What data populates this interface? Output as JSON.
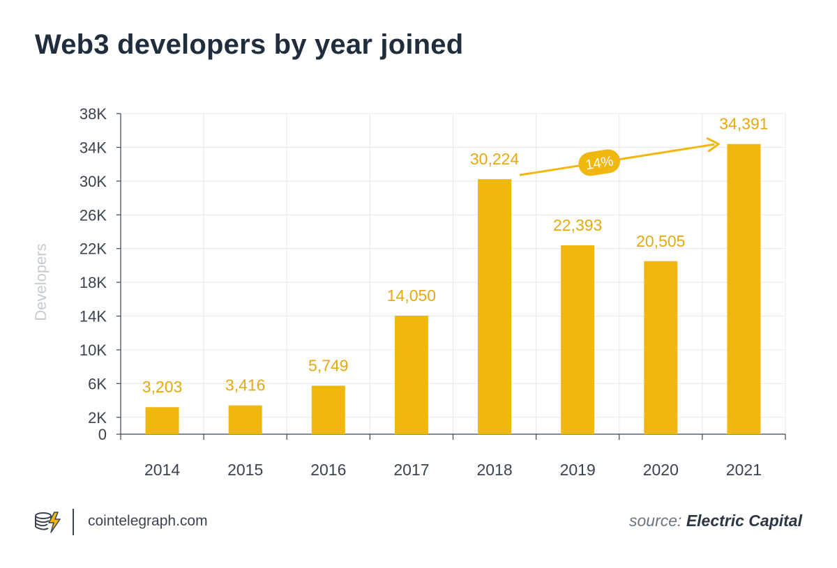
{
  "header": {
    "title": "Web3 developers by year joined"
  },
  "chart_data": {
    "type": "bar",
    "title": "Web3 developers by year joined",
    "xlabel": "",
    "ylabel": "Developers",
    "categories": [
      "2014",
      "2015",
      "2016",
      "2017",
      "2018",
      "2019",
      "2020",
      "2021"
    ],
    "values": [
      3203,
      3416,
      5749,
      14050,
      30224,
      22393,
      20505,
      34391
    ],
    "value_labels": [
      "3,203",
      "3,416",
      "5,749",
      "14,050",
      "30,224",
      "22,393",
      "20,505",
      "34,391"
    ],
    "ylim": [
      0,
      38000
    ],
    "yticks": [
      0,
      2000,
      6000,
      10000,
      14000,
      18000,
      22000,
      26000,
      30000,
      34000,
      38000
    ],
    "ytick_labels": [
      "0",
      "2K",
      "6K",
      "10K",
      "14K",
      "18K",
      "22K",
      "26K",
      "30K",
      "34K",
      "38K"
    ],
    "grid": true,
    "annotations": [
      {
        "type": "arrow",
        "from": "2018",
        "to": "2021",
        "label": "14%"
      }
    ],
    "colors": {
      "bar": "#f0b70e",
      "label": "#e5aa10",
      "axis_text": "#3a4350",
      "ylabel": "#c5cbd1",
      "grid": "#e8e8e8"
    }
  },
  "footer": {
    "site": "cointelegraph.com",
    "source_prefix": "source:",
    "source_name": "Electric Capital",
    "logo_icon": "cointelegraph-logo-icon"
  }
}
